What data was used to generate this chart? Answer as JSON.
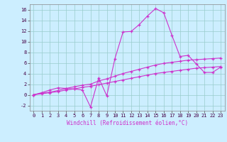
{
  "xlabel": "Windchill (Refroidissement éolien,°C)",
  "xlim": [
    -0.5,
    23.5
  ],
  "ylim": [
    -3.0,
    17.0
  ],
  "xticks": [
    0,
    1,
    2,
    3,
    4,
    5,
    6,
    7,
    8,
    9,
    10,
    11,
    12,
    13,
    14,
    15,
    16,
    17,
    18,
    19,
    20,
    21,
    22,
    23
  ],
  "yticks": [
    -2,
    0,
    2,
    4,
    6,
    8,
    10,
    12,
    14,
    16
  ],
  "bg_color": "#cceeff",
  "line_color": "#cc33cc",
  "grid_color": "#99cccc",
  "line1_y": [
    0.0,
    0.4,
    0.9,
    1.3,
    1.2,
    1.1,
    0.9,
    -2.3,
    3.2,
    -0.2,
    6.8,
    11.8,
    11.9,
    13.2,
    14.8,
    16.2,
    15.4,
    11.2,
    7.2,
    7.4,
    5.8,
    4.2,
    4.2,
    5.2
  ],
  "line2_y": [
    0.0,
    0.3,
    0.5,
    0.8,
    1.2,
    1.5,
    1.8,
    2.0,
    2.6,
    3.0,
    3.5,
    4.0,
    4.4,
    4.8,
    5.2,
    5.6,
    5.9,
    6.1,
    6.3,
    6.5,
    6.6,
    6.7,
    6.8,
    6.9
  ],
  "line3_y": [
    0.0,
    0.2,
    0.4,
    0.6,
    0.9,
    1.1,
    1.4,
    1.6,
    1.9,
    2.2,
    2.5,
    2.8,
    3.1,
    3.4,
    3.7,
    4.0,
    4.2,
    4.4,
    4.6,
    4.8,
    5.0,
    5.1,
    5.2,
    5.3
  ],
  "tick_fontsize": 5,
  "xlabel_fontsize": 5.5,
  "xlabel_color": "#cc33cc"
}
